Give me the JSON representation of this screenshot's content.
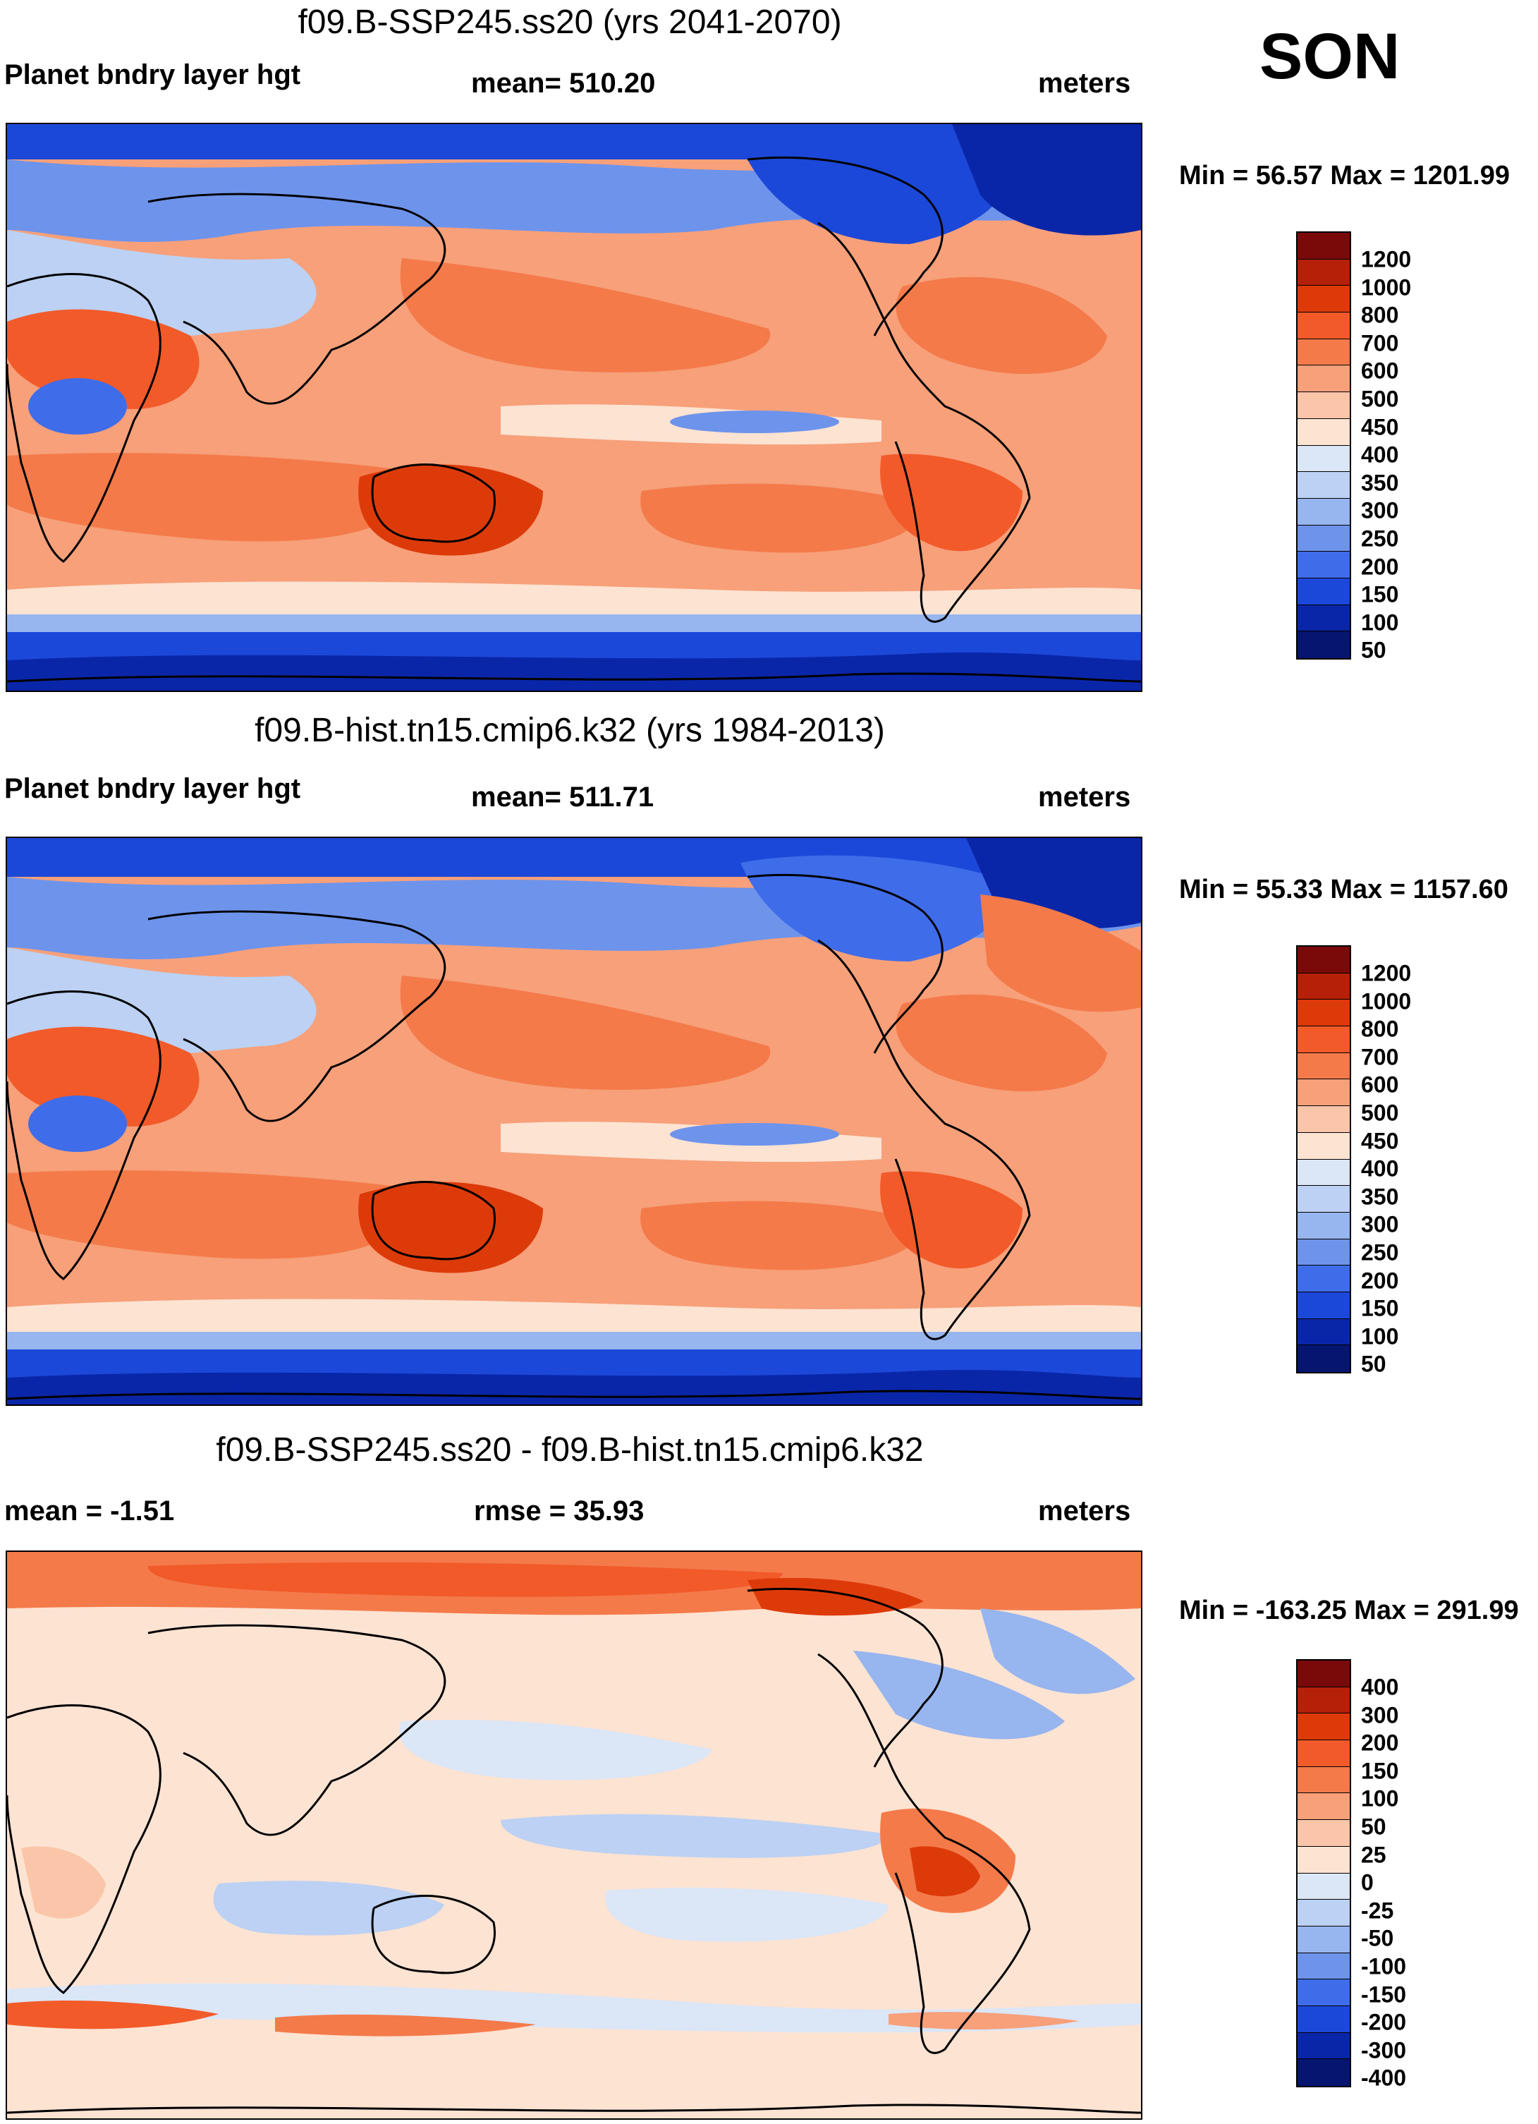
{
  "season": "SON",
  "panels": [
    {
      "title": "f09.B-SSP245.ss20 (yrs 2041-2070)",
      "left_label": "Planet bndry layer hgt",
      "center_label": "mean= 510.20",
      "right_label": "meters",
      "minmax": "Min =  56.57 Max = 1201.99",
      "levels": [
        "1200",
        "1000",
        "800",
        "700",
        "600",
        "500",
        "450",
        "400",
        "350",
        "300",
        "250",
        "200",
        "150",
        "100",
        "50"
      ]
    },
    {
      "title": "f09.B-hist.tn15.cmip6.k32 (yrs 1984-2013)",
      "left_label": "Planet bndry layer hgt",
      "center_label": "mean= 511.71",
      "right_label": "meters",
      "minmax": "Min =  55.33 Max = 1157.60",
      "levels": [
        "1200",
        "1000",
        "800",
        "700",
        "600",
        "500",
        "450",
        "400",
        "350",
        "300",
        "250",
        "200",
        "150",
        "100",
        "50"
      ]
    },
    {
      "title": "f09.B-SSP245.ss20 - f09.B-hist.tn15.cmip6.k32",
      "left_label": "mean =  -1.51",
      "center_label": "rmse =  35.93",
      "right_label": "meters",
      "minmax": "Min = -163.25 Max = 291.99",
      "levels": [
        "400",
        "300",
        "200",
        "150",
        "100",
        "50",
        "25",
        "0",
        "-25",
        "-50",
        "-100",
        "-150",
        "-200",
        "-300",
        "-400"
      ]
    }
  ],
  "colors": {
    "abs_scale": [
      "#7a0a0a",
      "#b52008",
      "#dd3a0a",
      "#f25a2a",
      "#f47a4a",
      "#f7a07a",
      "#fac5a8",
      "#fde3d2",
      "#dbe6f7",
      "#bcd1f3",
      "#97b5ee",
      "#6e93eb",
      "#3f6ce9",
      "#1c48d9",
      "#0a26a8",
      "#061570"
    ],
    "diff_scale": [
      "#7a0a0a",
      "#b52008",
      "#dd3a0a",
      "#f25a2a",
      "#f47a4a",
      "#f7a07a",
      "#fac5a8",
      "#fde3d2",
      "#dbe6f7",
      "#bcd1f3",
      "#97b5ee",
      "#6e93eb",
      "#3f6ce9",
      "#1c48d9",
      "#0a26a8",
      "#061570"
    ]
  }
}
